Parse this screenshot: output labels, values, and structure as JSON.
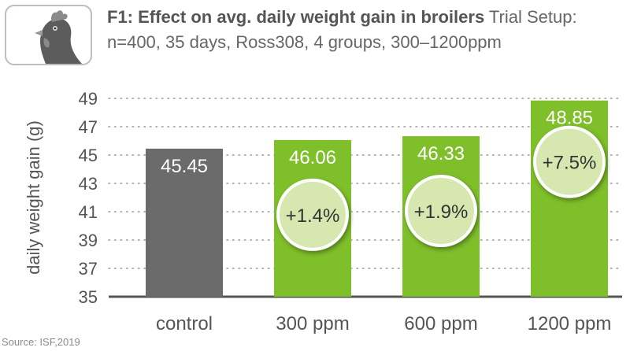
{
  "header": {
    "title": "F1: Effect on avg. daily weight gain in broilers",
    "setup_label": "Trial Setup:",
    "setup_details": "n=400, 35 days, Ross308, 4 groups, 300–1200ppm",
    "logo_icon": "chicken-head-icon"
  },
  "source": "Source: ISF,2019",
  "colors": {
    "control": "#6b6b6b",
    "treatment": "#7fbf2a",
    "badge_fill": "#d6e8b0",
    "badge_stroke": "#ffffff",
    "grid": "#9a9a9a",
    "axis_text": "#555555"
  },
  "chart_data": {
    "type": "bar",
    "title": "",
    "xlabel": "",
    "ylabel": "daily weight gain (g)",
    "categories": [
      "control",
      "300 ppm",
      "600 ppm",
      "1200 ppm"
    ],
    "values": [
      45.45,
      46.06,
      46.33,
      48.85
    ],
    "value_labels": [
      "45.45",
      "46.06",
      "46.33",
      "48.85"
    ],
    "annotations": [
      "",
      "+1.4%",
      "+1.9%",
      "+7.5%"
    ],
    "ylim": [
      35,
      49
    ],
    "yticks": [
      35,
      37,
      39,
      41,
      43,
      45,
      47,
      49
    ],
    "grid": true,
    "legend": "none"
  }
}
